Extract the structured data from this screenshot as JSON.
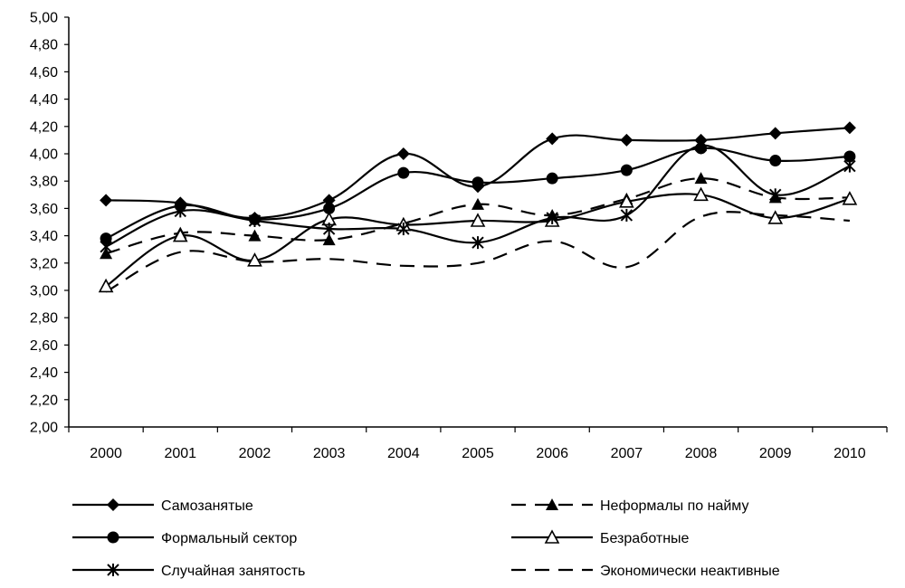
{
  "chart_data": {
    "type": "line",
    "title": "",
    "xlabel": "",
    "ylabel": "",
    "categories": [
      "2000",
      "2001",
      "2002",
      "2003",
      "2004",
      "2005",
      "2006",
      "2007",
      "2008",
      "2009",
      "2010"
    ],
    "ylim": [
      2.0,
      5.0
    ],
    "y_ticks": [
      "2,00",
      "2,20",
      "2,40",
      "2,60",
      "2,80",
      "3,00",
      "3,20",
      "3,40",
      "3,60",
      "3,80",
      "4,00",
      "4,20",
      "4,40",
      "4,60",
      "4,80",
      "5,00"
    ],
    "grid": false,
    "legend_position": "bottom",
    "series": [
      {
        "name": "Самозанятые",
        "marker": "diamond",
        "line": "solid",
        "values": [
          3.66,
          3.64,
          3.53,
          3.66,
          4.0,
          3.76,
          4.11,
          4.1,
          4.1,
          4.15,
          4.19
        ]
      },
      {
        "name": "Неформалы по найму",
        "marker": "triangle-filled",
        "line": "dashed",
        "values": [
          3.27,
          3.42,
          3.4,
          3.37,
          3.49,
          3.63,
          3.55,
          3.67,
          3.82,
          3.68,
          3.68
        ]
      },
      {
        "name": "Формальный сектор",
        "marker": "circle",
        "line": "solid",
        "values": [
          3.38,
          3.62,
          3.52,
          3.6,
          3.86,
          3.79,
          3.82,
          3.88,
          4.04,
          3.95,
          3.98
        ]
      },
      {
        "name": "Безработные",
        "marker": "triangle-open",
        "line": "solid",
        "values": [
          3.03,
          3.4,
          3.22,
          3.52,
          3.48,
          3.51,
          3.51,
          3.65,
          3.7,
          3.53,
          3.67
        ]
      },
      {
        "name": "Случайная занятость",
        "marker": "asterisk",
        "line": "solid",
        "values": [
          3.32,
          3.58,
          3.51,
          3.45,
          3.45,
          3.35,
          3.53,
          3.55,
          4.06,
          3.7,
          3.91
        ]
      },
      {
        "name": "Экономически неактивные",
        "marker": "none",
        "line": "dashed",
        "values": [
          2.99,
          3.28,
          3.21,
          3.23,
          3.18,
          3.2,
          3.36,
          3.17,
          3.54,
          3.55,
          3.51
        ]
      }
    ]
  }
}
